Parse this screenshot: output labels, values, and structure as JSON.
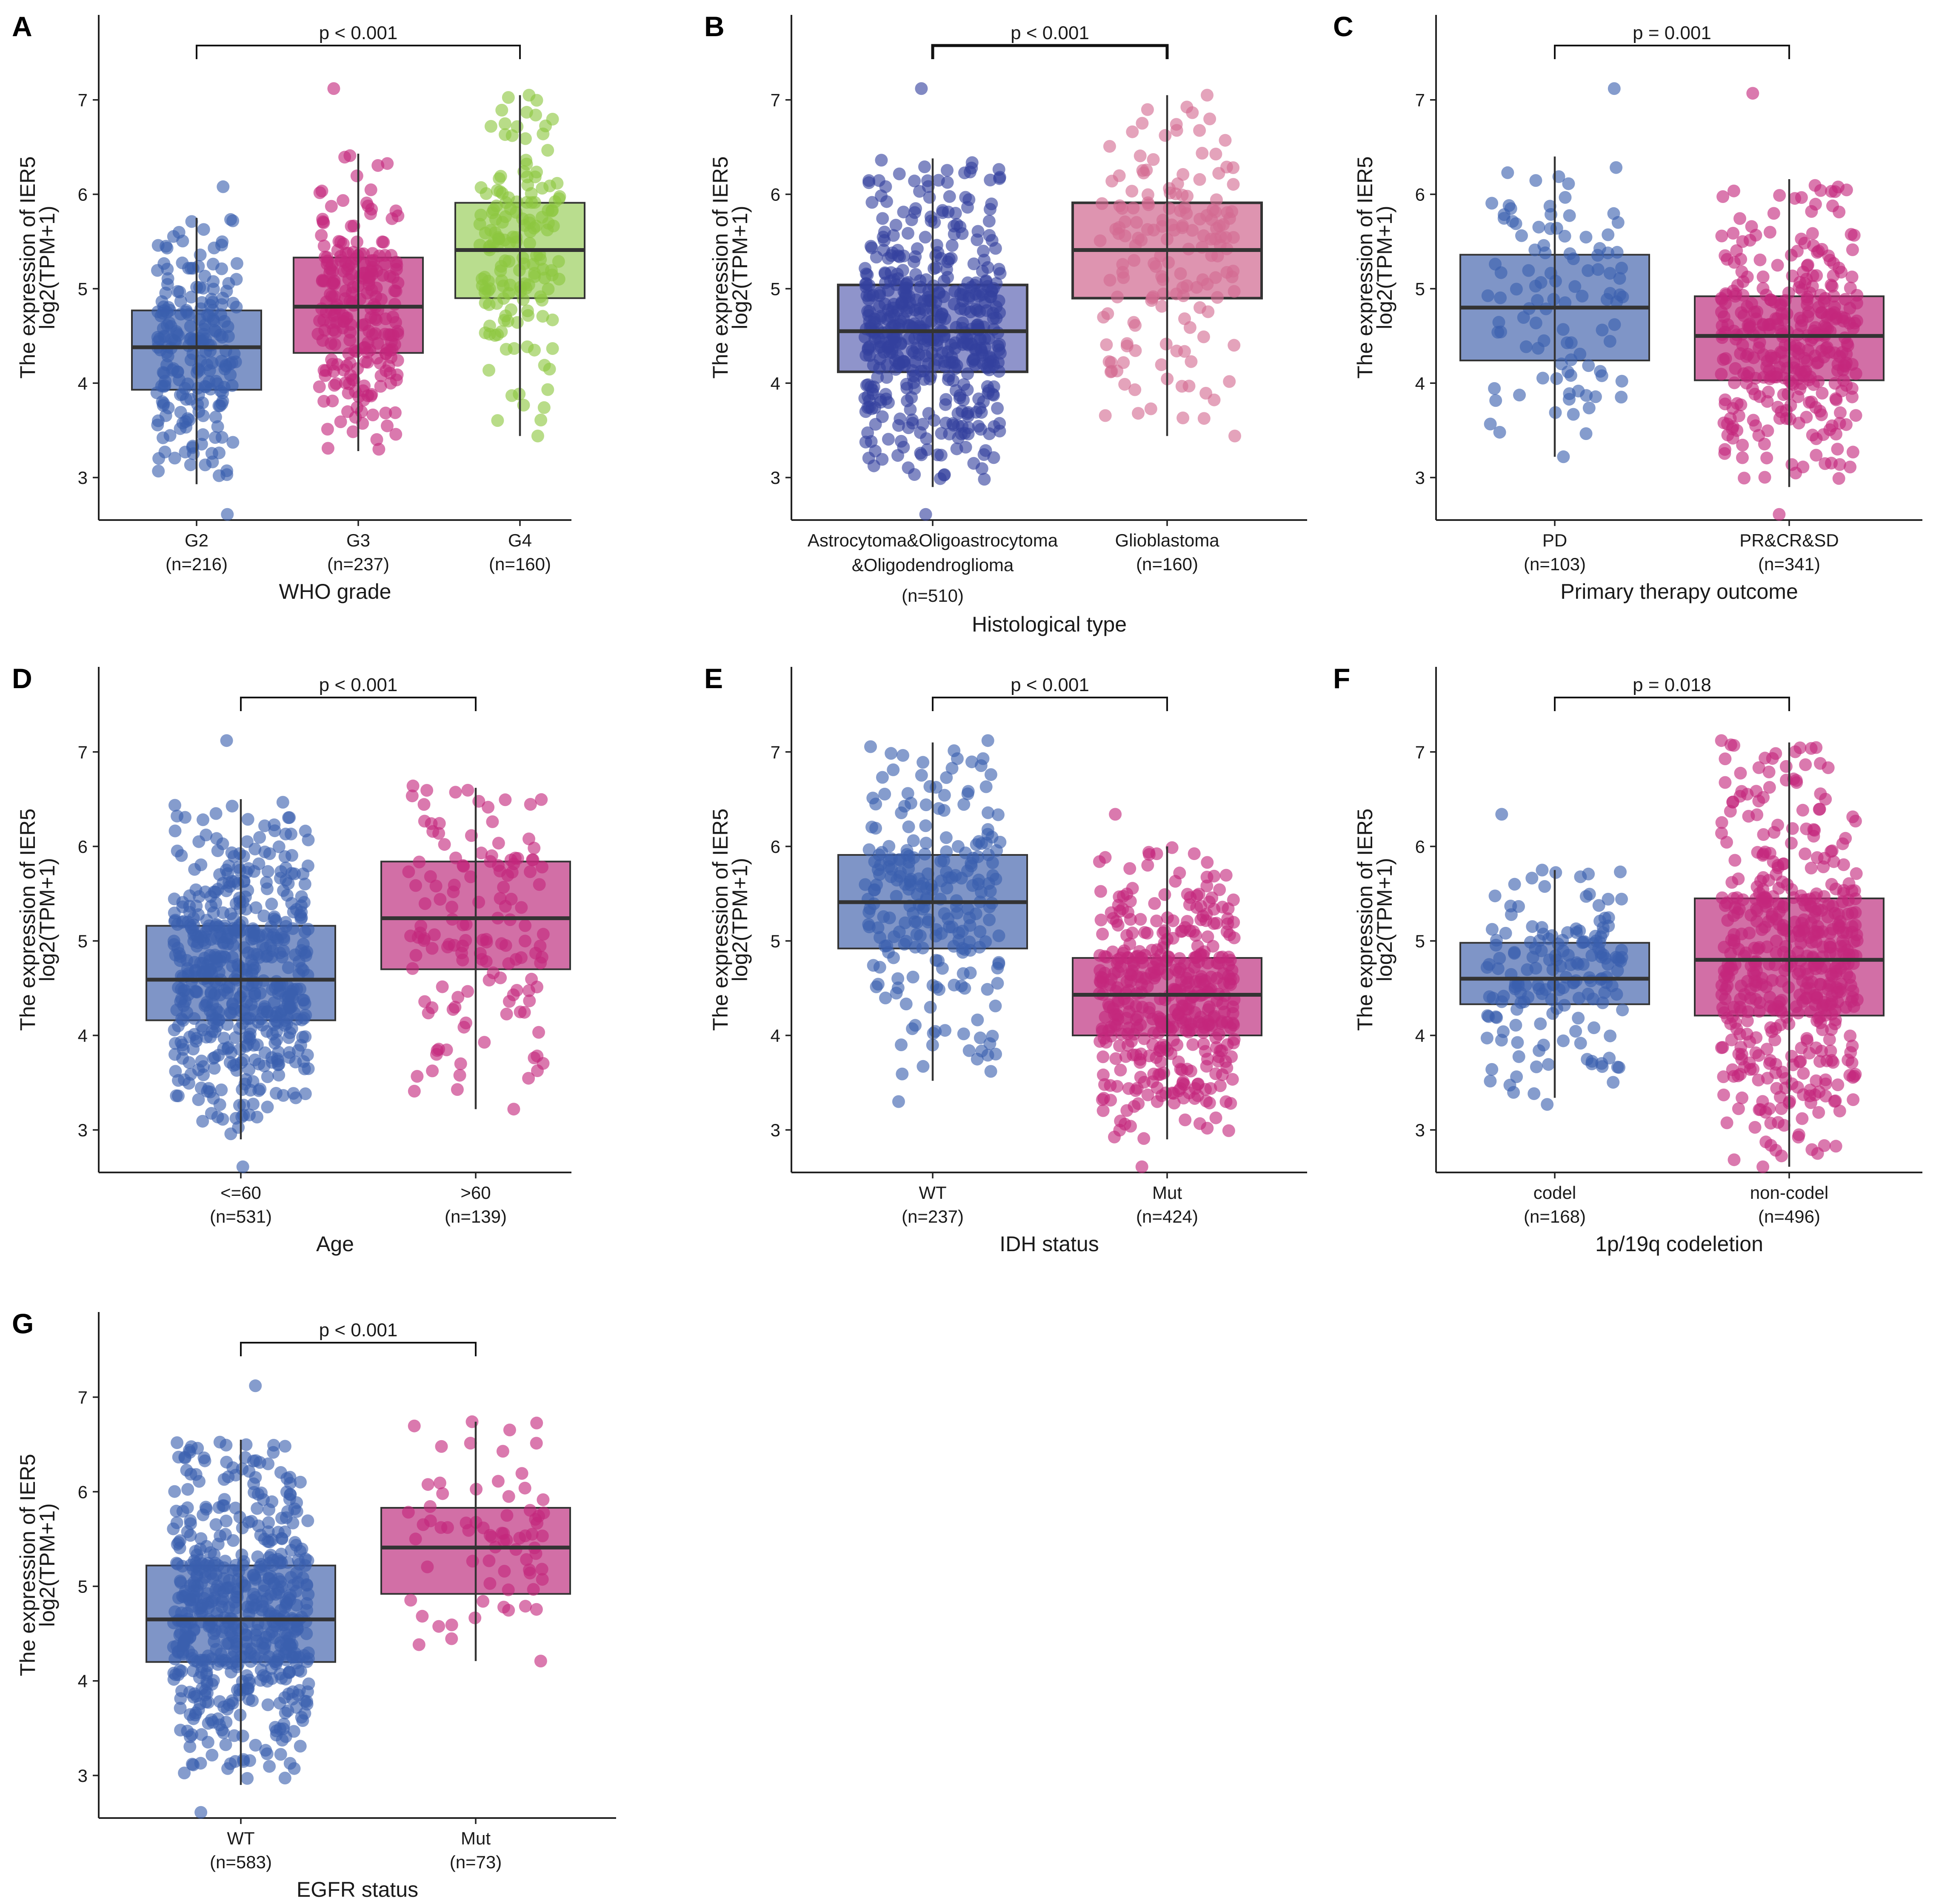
{
  "figure": {
    "colors": {
      "blue": "#3a5fae",
      "magenta": "#c3267c",
      "green": "#8dc63f",
      "blue_box": "#7f95c7",
      "magenta_box": "#d26fa6",
      "green_box": "#b9dd8e",
      "histo_blue": "#34409e",
      "histo_blue_box": "#8f94cb",
      "histo_pink": "#d46a92",
      "histo_pink_box": "#de94b0"
    }
  },
  "chart_data": [
    {
      "id": "A",
      "type": "box",
      "letter": "A",
      "ylabel": "The expression of IER5",
      "ylabel2": "log2(TPM+1)",
      "xlabel": "WHO grade",
      "ylim": [
        2.55,
        7.9
      ],
      "yticks": [
        3,
        4,
        5,
        6,
        7
      ],
      "pvalue": "p < 0.001",
      "bracket": [
        0,
        2
      ],
      "groups": [
        {
          "name": "G2",
          "n": "(n=216)",
          "count": 216,
          "q1": 3.93,
          "median": 4.38,
          "q3": 4.77,
          "wmin": 2.93,
          "wmax": 5.75,
          "min": 2.61,
          "max": 6.08,
          "color": "blue",
          "box": "blue_box"
        },
        {
          "name": "G3",
          "n": "(n=237)",
          "count": 237,
          "q1": 4.32,
          "median": 4.81,
          "q3": 5.33,
          "wmin": 3.28,
          "wmax": 6.43,
          "min": 3.3,
          "max": 7.12,
          "color": "magenta",
          "box": "magenta_box"
        },
        {
          "name": "G4",
          "n": "(n=160)",
          "count": 160,
          "q1": 4.9,
          "median": 5.41,
          "q3": 5.91,
          "wmin": 3.44,
          "wmax": 7.05,
          "min": 3.44,
          "max": 7.05,
          "color": "green",
          "box": "green_box"
        }
      ]
    },
    {
      "id": "B",
      "type": "box",
      "letter": "B",
      "ylabel": "The expression of IER5",
      "ylabel2": "log2(TPM+1)",
      "xlabel": "Histological type",
      "ylim": [
        2.55,
        7.9
      ],
      "yticks": [
        3,
        4,
        5,
        6,
        7
      ],
      "pvalue": "p < 0.001",
      "bracket": [
        0,
        1
      ],
      "heavy": true,
      "groups": [
        {
          "name": "Astrocytoma&Oligoastrocytoma",
          "name2": "&Oligodendroglioma",
          "n": "(n=510)",
          "count": 510,
          "q1": 4.12,
          "median": 4.55,
          "q3": 5.04,
          "wmin": 2.9,
          "wmax": 6.38,
          "min": 2.61,
          "max": 7.12,
          "color": "histo_blue",
          "box": "histo_blue_box"
        },
        {
          "name": "Glioblastoma",
          "n": "(n=160)",
          "count": 160,
          "q1": 4.9,
          "median": 5.41,
          "q3": 5.91,
          "wmin": 3.44,
          "wmax": 7.05,
          "min": 3.44,
          "max": 7.05,
          "color": "histo_pink",
          "box": "histo_pink_box"
        }
      ]
    },
    {
      "id": "C",
      "type": "box",
      "letter": "C",
      "ylabel": "The expression of IER5",
      "ylabel2": "log2(TPM+1)",
      "xlabel": "Primary therapy outcome",
      "ylim": [
        2.55,
        7.9
      ],
      "yticks": [
        3,
        4,
        5,
        6,
        7
      ],
      "pvalue": "p = 0.001",
      "bracket": [
        0,
        1
      ],
      "groups": [
        {
          "name": "PD",
          "n": "(n=103)",
          "count": 103,
          "q1": 4.24,
          "median": 4.8,
          "q3": 5.36,
          "wmin": 3.22,
          "wmax": 6.4,
          "min": 3.22,
          "max": 7.12,
          "color": "blue",
          "box": "blue_box"
        },
        {
          "name": "PR&CR&SD",
          "n": "(n=341)",
          "count": 341,
          "q1": 4.03,
          "median": 4.5,
          "q3": 4.92,
          "wmin": 2.9,
          "wmax": 6.16,
          "min": 2.61,
          "max": 7.07,
          "color": "magenta",
          "box": "magenta_box"
        }
      ]
    },
    {
      "id": "D",
      "type": "box",
      "letter": "D",
      "ylabel": "The expression of IER5",
      "ylabel2": "log2(TPM+1)",
      "xlabel": "Age",
      "ylim": [
        2.55,
        7.9
      ],
      "yticks": [
        3,
        4,
        5,
        6,
        7
      ],
      "pvalue": "p < 0.001",
      "bracket": [
        0,
        1
      ],
      "groups": [
        {
          "name": "<=60",
          "n": "(n=531)",
          "count": 531,
          "q1": 4.16,
          "median": 4.59,
          "q3": 5.16,
          "wmin": 2.9,
          "wmax": 6.5,
          "min": 2.61,
          "max": 7.12,
          "color": "blue",
          "box": "blue_box"
        },
        {
          "name": ">60",
          "n": "(n=139)",
          "count": 139,
          "q1": 4.7,
          "median": 5.24,
          "q3": 5.84,
          "wmin": 3.22,
          "wmax": 6.62,
          "min": 3.22,
          "max": 6.64,
          "color": "magenta",
          "box": "magenta_box"
        }
      ]
    },
    {
      "id": "E",
      "type": "box",
      "letter": "E",
      "ylabel": "The expression of IER5",
      "ylabel2": "log2(TPM+1)",
      "xlabel": "IDH status",
      "ylim": [
        2.55,
        7.9
      ],
      "yticks": [
        3,
        4,
        5,
        6,
        7
      ],
      "pvalue": "p < 0.001",
      "bracket": [
        0,
        1
      ],
      "groups": [
        {
          "name": "WT",
          "n": "(n=237)",
          "count": 237,
          "q1": 4.92,
          "median": 5.41,
          "q3": 5.91,
          "wmin": 3.52,
          "wmax": 7.1,
          "min": 3.3,
          "max": 7.12,
          "color": "blue",
          "box": "blue_box"
        },
        {
          "name": "Mut",
          "n": "(n=424)",
          "count": 424,
          "q1": 4.0,
          "median": 4.43,
          "q3": 4.82,
          "wmin": 2.9,
          "wmax": 6.0,
          "min": 2.61,
          "max": 6.34,
          "color": "magenta",
          "box": "magenta_box"
        }
      ]
    },
    {
      "id": "F",
      "type": "box",
      "letter": "F",
      "ylabel": "The expression of IER5",
      "ylabel2": "log2(TPM+1)",
      "xlabel": "1p/19q codeletion",
      "ylim": [
        2.55,
        7.9
      ],
      "yticks": [
        3,
        4,
        5,
        6,
        7
      ],
      "pvalue": "p = 0.018",
      "bracket": [
        0,
        1
      ],
      "groups": [
        {
          "name": "codel",
          "n": "(n=168)",
          "count": 168,
          "q1": 4.33,
          "median": 4.6,
          "q3": 4.98,
          "wmin": 3.34,
          "wmax": 5.75,
          "min": 3.27,
          "max": 6.34,
          "color": "blue",
          "box": "blue_box"
        },
        {
          "name": "non-codel",
          "n": "(n=496)",
          "count": 496,
          "q1": 4.21,
          "median": 4.8,
          "q3": 5.45,
          "wmin": 2.61,
          "wmax": 7.1,
          "min": 2.61,
          "max": 7.12,
          "color": "magenta",
          "box": "magenta_box"
        }
      ]
    },
    {
      "id": "G",
      "type": "box",
      "letter": "G",
      "ylabel": "The expression of IER5",
      "ylabel2": "log2(TPM+1)",
      "xlabel": "EGFR status",
      "ylim": [
        2.55,
        7.9
      ],
      "yticks": [
        3,
        4,
        5,
        6,
        7
      ],
      "pvalue": "p < 0.001",
      "bracket": [
        0,
        1
      ],
      "groups": [
        {
          "name": "WT",
          "n": "(n=583)",
          "count": 583,
          "q1": 4.2,
          "median": 4.65,
          "q3": 5.22,
          "wmin": 2.9,
          "wmax": 6.55,
          "min": 2.61,
          "max": 7.12,
          "color": "blue",
          "box": "blue_box"
        },
        {
          "name": "Mut",
          "n": "(n=73)",
          "count": 73,
          "q1": 4.92,
          "median": 5.41,
          "q3": 5.83,
          "wmin": 4.21,
          "wmax": 6.74,
          "min": 4.21,
          "max": 6.74,
          "color": "magenta",
          "box": "magenta_box"
        }
      ]
    }
  ]
}
